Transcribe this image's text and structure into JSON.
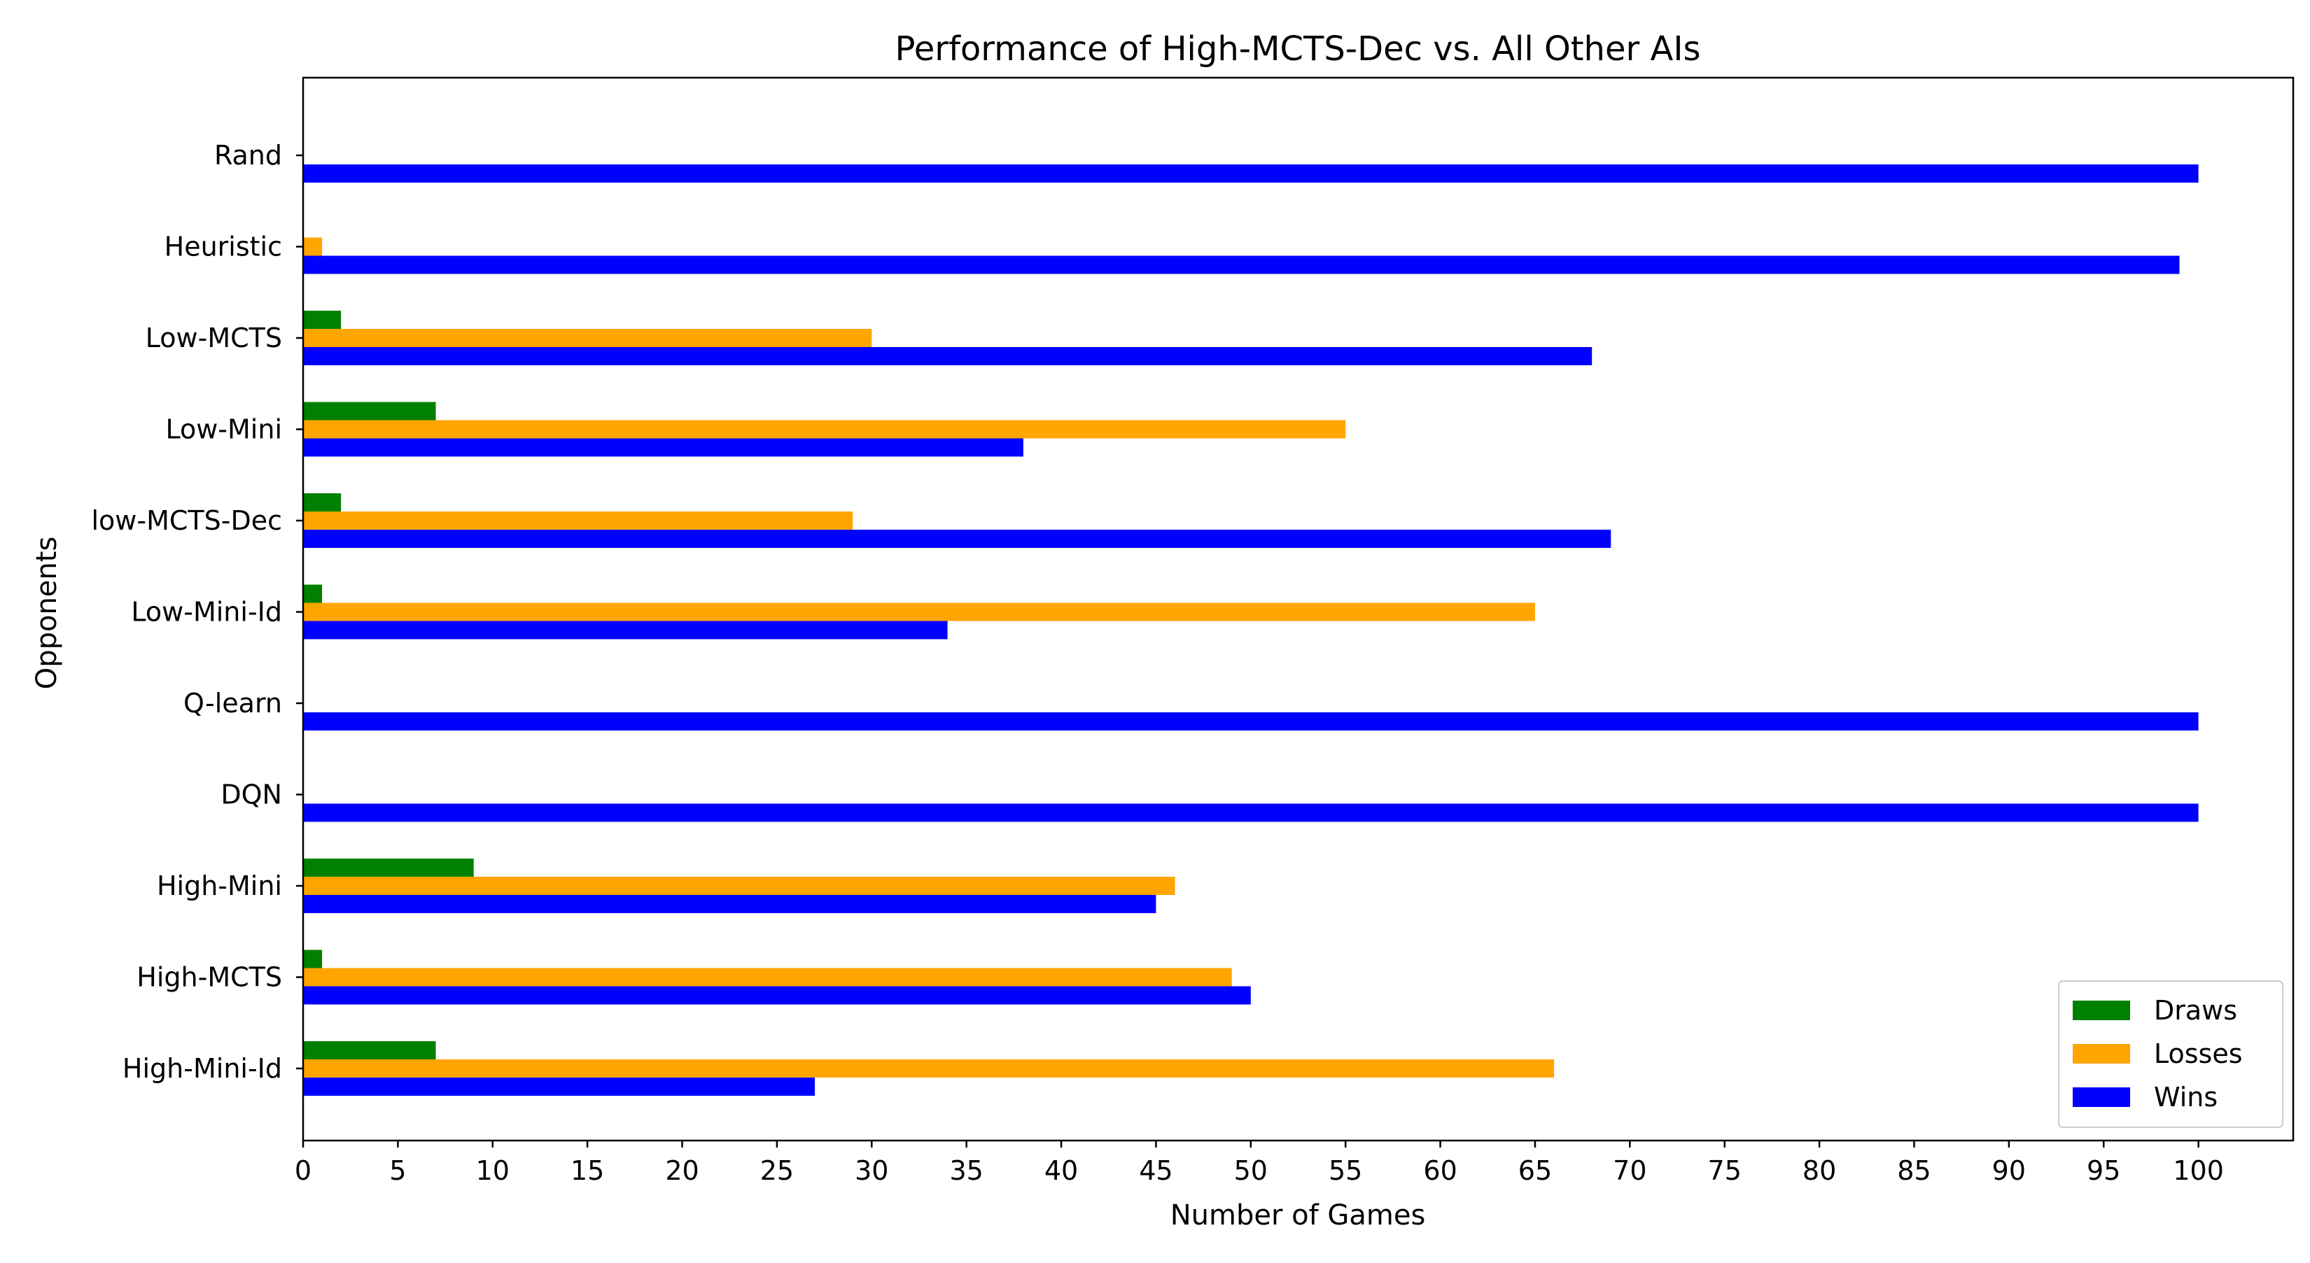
{
  "chart_data": {
    "type": "bar",
    "orientation": "horizontal",
    "title": "Performance of High-MCTS-Dec vs. All Other AIs",
    "xlabel": "Number of Games",
    "ylabel": "Opponents",
    "xlim": [
      0,
      105
    ],
    "xticks": [
      "0",
      "5",
      "10",
      "15",
      "20",
      "25",
      "30",
      "35",
      "40",
      "45",
      "50",
      "55",
      "60",
      "65",
      "70",
      "75",
      "80",
      "85",
      "90",
      "95",
      "100"
    ],
    "categories": [
      "Rand",
      "Heuristic",
      "Low-MCTS",
      "Low-Mini",
      "low-MCTS-Dec",
      "Low-Mini-Id",
      "Q-learn",
      "DQN",
      "High-Mini",
      "High-MCTS",
      "High-Mini-Id"
    ],
    "series": [
      {
        "name": "Draws",
        "color": "#008000",
        "values": [
          0,
          0,
          2,
          7,
          2,
          1,
          0,
          0,
          9,
          1,
          7
        ]
      },
      {
        "name": "Losses",
        "color": "#FFA500",
        "values": [
          0,
          1,
          30,
          55,
          29,
          65,
          0,
          0,
          46,
          49,
          66
        ]
      },
      {
        "name": "Wins",
        "color": "#0000FF",
        "values": [
          100,
          99,
          68,
          38,
          69,
          34,
          100,
          100,
          45,
          50,
          27
        ]
      }
    ],
    "legend_position": "lower right",
    "grid": false
  }
}
